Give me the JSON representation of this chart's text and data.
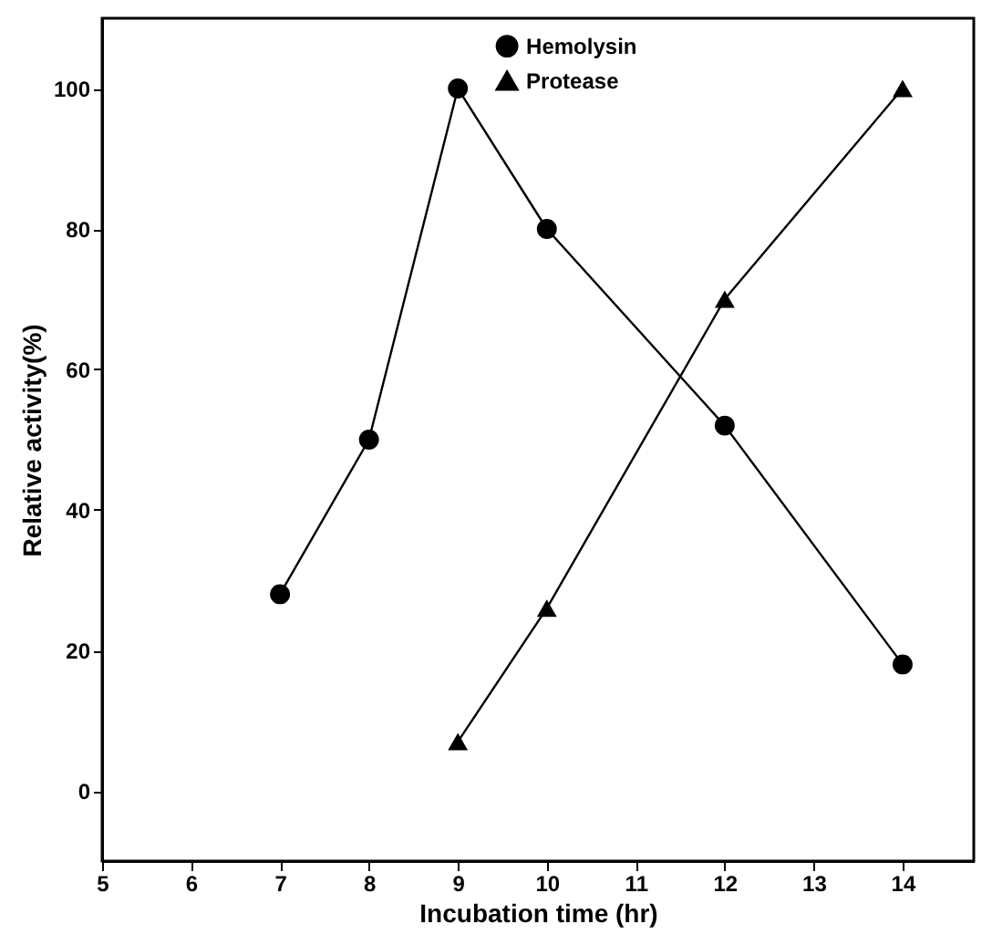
{
  "chart_data": {
    "type": "line",
    "xlabel": "Incubation time (hr)",
    "ylabel": "Relative activity(%)",
    "xlim": [
      5,
      14.8
    ],
    "xticks": [
      5,
      6,
      7,
      8,
      9,
      10,
      11,
      12,
      13,
      14
    ],
    "ylim": [
      -10,
      110
    ],
    "yticks": [
      0,
      20,
      40,
      60,
      80,
      100
    ],
    "grid": false,
    "legend": "top right",
    "series": [
      {
        "name": "Hemolysin",
        "color": "#000000",
        "marker": "circle",
        "x": [
          7,
          8,
          9,
          10,
          12,
          14
        ],
        "values": [
          28,
          50,
          100,
          80,
          52,
          18
        ]
      },
      {
        "name": "Protease",
        "color": "#000000",
        "marker": "triangle",
        "x": [
          9,
          10,
          12,
          14
        ],
        "values": [
          7,
          26,
          70,
          100
        ]
      }
    ]
  }
}
